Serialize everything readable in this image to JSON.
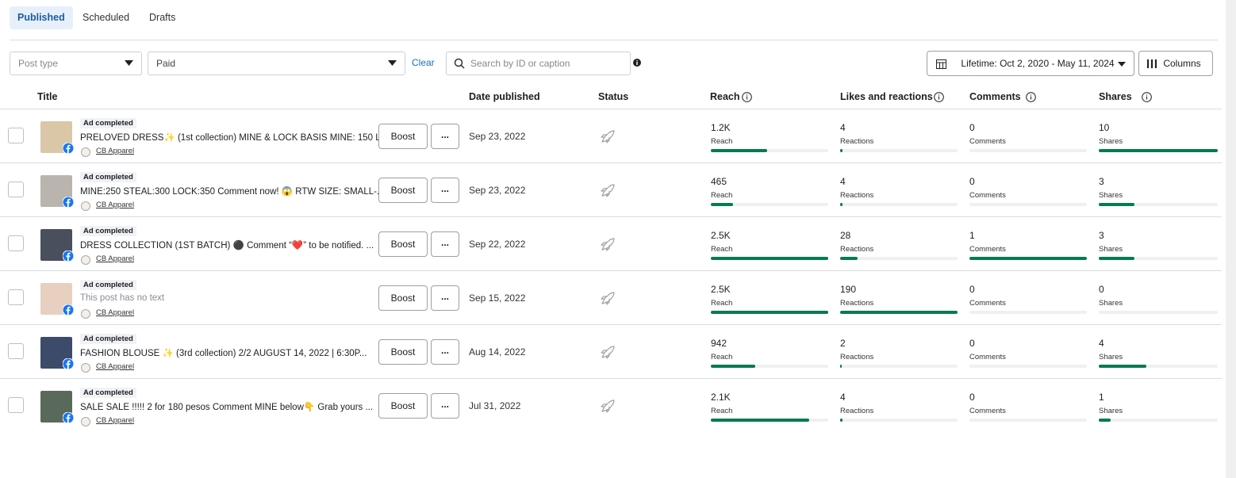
{
  "tabs": [
    "Published",
    "Scheduled",
    "Drafts"
  ],
  "filters": {
    "post_type": "Post type",
    "paid": "Paid",
    "clear": "Clear",
    "search": "Search by ID or caption",
    "date_range": "Lifetime: Oct 2, 2020 - May 11, 2024",
    "columns": "Columns"
  },
  "table": {
    "headers": [
      "Title",
      "Date published",
      "Status",
      "Reach",
      "Likes and reactions",
      "Comments",
      "Shares"
    ],
    "metric_labels": [
      "Reach",
      "Reactions",
      "Comments",
      "Shares"
    ],
    "boost": "Boost",
    "more": "...",
    "rows": [
      {
        "badge": "Ad completed",
        "caption": "PRELOVED DRESS✨ (1st collection) MINE & LOCK BASIS MINE: 150 L...",
        "page": "CB Apparel",
        "date": "Sep 23, 2022",
        "reach": {
          "value": 1200,
          "label": "1.2K"
        },
        "reactions": 4,
        "comments": 0,
        "shares": 10
      },
      {
        "badge": "Ad completed",
        "caption": "MINE:250 STEAL:300 LOCK:350 Comment now! 😱 RTW SIZE: SMALL-...",
        "page": "CB Apparel",
        "date": "Sep 23, 2022",
        "reach": 465,
        "reactions": 4,
        "comments": 0,
        "shares": 3
      },
      {
        "badge": "Ad completed",
        "caption": "DRESS COLLECTION (1ST BATCH) ⚫ Comment “❤️” to be notified. ...",
        "page": "CB Apparel",
        "date": "Sep 22, 2022",
        "reach": {
          "value": 2500,
          "label": "2.5K"
        },
        "reactions": 28,
        "comments": 1,
        "shares": 3
      },
      {
        "badge": "Ad completed",
        "caption": "This post has no text",
        "page": "CB Apparel",
        "date": "Sep 15, 2022",
        "reach": {
          "value": 2500,
          "label": "2.5K"
        },
        "reactions": 190,
        "comments": 0,
        "shares": 0
      },
      {
        "badge": "Ad completed",
        "caption": "FASHION BLOUSE ✨ (3rd collection) 2/2 AUGUST 14, 2022 | 6:30P...",
        "page": "CB Apparel",
        "date": "Aug 14, 2022",
        "reach": 942,
        "reactions": 2,
        "comments": 0,
        "shares": 4
      },
      {
        "badge": "Ad completed",
        "caption": "SALE SALE !!!!! 2 for 180 pesos Comment MINE below👇 Grab yours ...",
        "page": "CB Apparel",
        "date": "Jul 31, 2022",
        "reach": {
          "value": 2100,
          "label": "2.1K"
        },
        "reactions": 4,
        "comments": 0,
        "shares": 1
      }
    ]
  }
}
